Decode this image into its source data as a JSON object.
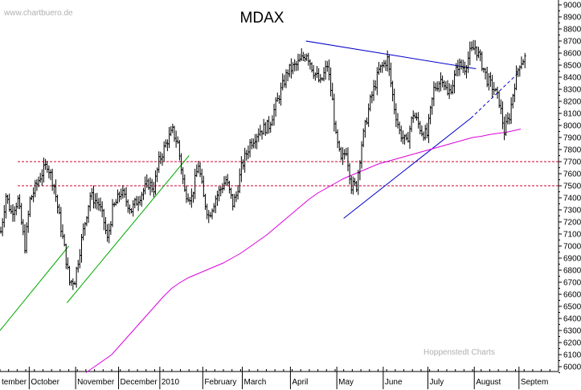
{
  "chart_data": {
    "type": "ohlc",
    "title": "MDAX",
    "watermark": "www.chartbuero.de",
    "credit": "Hoppenstedt Charts",
    "y_axis": {
      "ticks": [
        6000,
        6100,
        6200,
        6300,
        6400,
        6500,
        6600,
        6700,
        6800,
        6900,
        7000,
        7100,
        7200,
        7300,
        7400,
        7500,
        7600,
        7700,
        7800,
        7900,
        8000,
        8100,
        8200,
        8300,
        8400,
        8500,
        8600,
        8700,
        8800,
        8900,
        9000
      ],
      "ylim": [
        5960,
        9040
      ],
      "position": "right"
    },
    "x_axis": {
      "range": [
        0,
        325
      ],
      "months": [
        {
          "label": "tember",
          "start": 0
        },
        {
          "label": "October",
          "start": 17
        },
        {
          "label": "November",
          "start": 44
        },
        {
          "label": "December",
          "start": 69
        },
        {
          "label": "2010",
          "start": 93
        },
        {
          "label": "February",
          "start": 118
        },
        {
          "label": "March",
          "start": 141
        },
        {
          "label": "April",
          "start": 169
        },
        {
          "label": "May",
          "start": 196
        },
        {
          "label": "June",
          "start": 223
        },
        {
          "label": "July",
          "start": 249
        },
        {
          "label": "August",
          "start": 276
        },
        {
          "label": "Septem",
          "start": 302
        }
      ]
    },
    "price_keypoints": [
      [
        0,
        7120
      ],
      [
        3,
        7420
      ],
      [
        6,
        7280
      ],
      [
        10,
        7380
      ],
      [
        14,
        7000
      ],
      [
        17,
        7380
      ],
      [
        23,
        7580
      ],
      [
        27,
        7680
      ],
      [
        31,
        7500
      ],
      [
        37,
        6980
      ],
      [
        40,
        6700
      ],
      [
        43,
        6720
      ],
      [
        47,
        7050
      ],
      [
        52,
        7420
      ],
      [
        57,
        7350
      ],
      [
        60,
        7200
      ],
      [
        62,
        7050
      ],
      [
        65,
        7300
      ],
      [
        70,
        7450
      ],
      [
        76,
        7300
      ],
      [
        81,
        7420
      ],
      [
        86,
        7520
      ],
      [
        89,
        7480
      ],
      [
        92,
        7700
      ],
      [
        97,
        7880
      ],
      [
        100,
        7950
      ],
      [
        103,
        7850
      ],
      [
        107,
        7450
      ],
      [
        111,
        7400
      ],
      [
        115,
        7680
      ],
      [
        118,
        7400
      ],
      [
        121,
        7250
      ],
      [
        125,
        7400
      ],
      [
        131,
        7550
      ],
      [
        135,
        7350
      ],
      [
        137,
        7420
      ],
      [
        140,
        7650
      ],
      [
        145,
        7850
      ],
      [
        150,
        7950
      ],
      [
        156,
        8000
      ],
      [
        162,
        8250
      ],
      [
        167,
        8450
      ],
      [
        172,
        8500
      ],
      [
        178,
        8600
      ],
      [
        182,
        8450
      ],
      [
        186,
        8350
      ],
      [
        190,
        8500
      ],
      [
        193,
        8200
      ],
      [
        195,
        7900
      ],
      [
        198,
        7700
      ],
      [
        201,
        7800
      ],
      [
        204,
        7500
      ],
      [
        207,
        7500
      ],
      [
        210,
        7850
      ],
      [
        215,
        8200
      ],
      [
        220,
        8450
      ],
      [
        225,
        8550
      ],
      [
        229,
        8150
      ],
      [
        232,
        7950
      ],
      [
        236,
        7850
      ],
      [
        240,
        8100
      ],
      [
        245,
        7950
      ],
      [
        248,
        7920
      ],
      [
        252,
        8300
      ],
      [
        257,
        8400
      ],
      [
        260,
        8250
      ],
      [
        263,
        8350
      ],
      [
        266,
        8500
      ],
      [
        270,
        8480
      ],
      [
        273,
        8600
      ],
      [
        276,
        8650
      ],
      [
        279,
        8550
      ],
      [
        283,
        8380
      ],
      [
        287,
        8300
      ],
      [
        290,
        8200
      ],
      [
        293,
        7950
      ],
      [
        296,
        8080
      ],
      [
        299,
        8350
      ],
      [
        302,
        8520
      ],
      [
        305,
        8560
      ]
    ],
    "moving_average": {
      "color": "#dd00dd",
      "points": [
        [
          50,
          5950
        ],
        [
          55,
          6000
        ],
        [
          60,
          6050
        ],
        [
          65,
          6100
        ],
        [
          70,
          6180
        ],
        [
          75,
          6260
        ],
        [
          80,
          6340
        ],
        [
          85,
          6420
        ],
        [
          90,
          6500
        ],
        [
          95,
          6580
        ],
        [
          100,
          6650
        ],
        [
          105,
          6700
        ],
        [
          110,
          6740
        ],
        [
          115,
          6770
        ],
        [
          120,
          6800
        ],
        [
          125,
          6830
        ],
        [
          130,
          6860
        ],
        [
          135,
          6900
        ],
        [
          140,
          6940
        ],
        [
          145,
          6990
        ],
        [
          150,
          7040
        ],
        [
          155,
          7090
        ],
        [
          160,
          7150
        ],
        [
          165,
          7210
        ],
        [
          170,
          7270
        ],
        [
          175,
          7330
        ],
        [
          180,
          7390
        ],
        [
          185,
          7440
        ],
        [
          190,
          7480
        ],
        [
          195,
          7520
        ],
        [
          200,
          7560
        ],
        [
          205,
          7590
        ],
        [
          210,
          7620
        ],
        [
          215,
          7650
        ],
        [
          220,
          7680
        ],
        [
          225,
          7700
        ],
        [
          230,
          7720
        ],
        [
          235,
          7740
        ],
        [
          240,
          7760
        ],
        [
          245,
          7780
        ],
        [
          250,
          7800
        ],
        [
          255,
          7820
        ],
        [
          260,
          7840
        ],
        [
          265,
          7860
        ],
        [
          270,
          7880
        ],
        [
          275,
          7900
        ],
        [
          280,
          7910
        ],
        [
          285,
          7925
        ],
        [
          290,
          7935
        ],
        [
          295,
          7945
        ],
        [
          300,
          7960
        ],
        [
          303,
          7970
        ]
      ]
    },
    "horizontal_lines": [
      {
        "value": 7700,
        "color": "#cc0033",
        "style": "dashed"
      },
      {
        "value": 7500,
        "color": "#cc0033",
        "style": "dashed"
      }
    ],
    "trend_lines": [
      {
        "color": "#00aa00",
        "style": "solid",
        "from": [
          0,
          6300
        ],
        "to": [
          40,
          7000
        ]
      },
      {
        "color": "#00aa00",
        "style": "solid",
        "from": [
          39,
          6530
        ],
        "to": [
          110,
          7750
        ]
      },
      {
        "color": "#0000cc",
        "style": "solid",
        "from": [
          178,
          8700
        ],
        "to": [
          277,
          8470
        ]
      },
      {
        "color": "#0000cc",
        "style": "solid",
        "from": [
          200,
          7230
        ],
        "to": [
          274,
          8060
        ]
      },
      {
        "color": "#0000cc",
        "style": "dashed",
        "from": [
          274,
          8060
        ],
        "to": [
          302,
          8440
        ]
      }
    ]
  }
}
